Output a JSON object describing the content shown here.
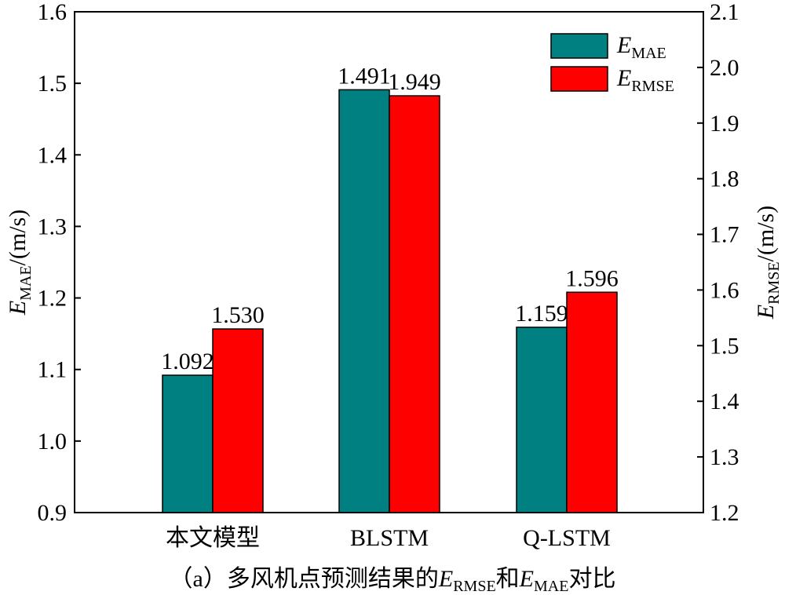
{
  "chart_data": {
    "type": "bar",
    "categories": [
      "本文模型",
      "BLSTM",
      "Q-LSTM"
    ],
    "series": [
      {
        "name": "E_MAE",
        "name_main": "E",
        "name_sub": "MAE",
        "axis": "left",
        "color": "#008080",
        "values": [
          1.092,
          1.491,
          1.159
        ],
        "labels": [
          "1.092",
          "1.491",
          "1.159"
        ]
      },
      {
        "name": "E_RMSE",
        "name_main": "E",
        "name_sub": "RMSE",
        "axis": "right",
        "color": "#ff0000",
        "values": [
          1.53,
          1.949,
          1.596
        ],
        "labels": [
          "1.530",
          "1.949",
          "1.596"
        ]
      }
    ],
    "y_left": {
      "label_main": "E",
      "label_sub": "MAE",
      "label_unit": "/(m/s)",
      "range": [
        0.9,
        1.6
      ],
      "ticks": [
        "0.9",
        "1.0",
        "1.1",
        "1.2",
        "1.3",
        "1.4",
        "1.5",
        "1.6"
      ]
    },
    "y_right": {
      "label_main": "E",
      "label_sub": "RMSE",
      "label_unit": "/(m/s)",
      "range": [
        1.2,
        2.1
      ],
      "ticks": [
        "1.2",
        "1.3",
        "1.4",
        "1.5",
        "1.6",
        "1.7",
        "1.8",
        "1.9",
        "2.0",
        "2.1"
      ]
    },
    "legend": "top-right",
    "grid": false
  },
  "caption": {
    "prefix": "（a）多风机点预测结果的",
    "e1": "E",
    "s1": "RMSE",
    "mid": "和",
    "e2": "E",
    "s2": "MAE",
    "suffix": "对比"
  }
}
